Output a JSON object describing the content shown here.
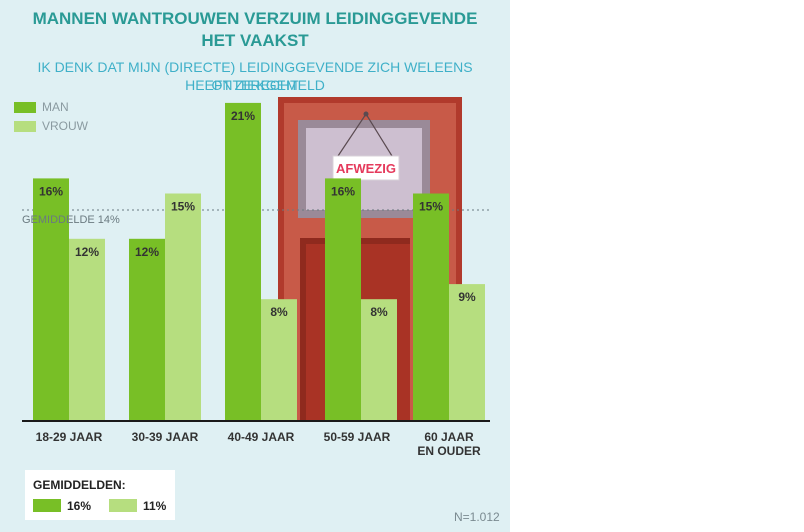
{
  "header": {
    "title_line1": "MANNEN WANTROUWEN VERZUIM LEIDINGGEVENDE",
    "title_line2": "HET VAAKST",
    "subtitle_line1": "IK DENK DAT MIJN (DIRECTE) LEIDINGGEVENDE ZICH WELEENS ONTERECHT",
    "subtitle_line2": "HEEFT ZIEKGEMELD"
  },
  "legend": [
    {
      "label": "MAN",
      "color": "#78bf26"
    },
    {
      "label": "VROUW",
      "color": "#b6de7f"
    }
  ],
  "illustration": {
    "sign_text": "AFWEZIG",
    "icon": "door-with-hanging-sign-icon"
  },
  "average_line_label": "GEMIDDELDE 14%",
  "averages": {
    "title": "GEMIDDELDEN:",
    "man": "16%",
    "vrouw": "11%"
  },
  "footnote": "N=1.012",
  "colors": {
    "man": "#78bf26",
    "vrouw": "#b6de7f",
    "panel": "#dff0f3",
    "door": "#b13a2c"
  },
  "chart_data": {
    "type": "bar",
    "title": "MANNEN WANTROUWEN VERZUIM LEIDINGGEVENDE HET VAAKST",
    "subtitle": "IK DENK DAT MIJN (DIRECTE) LEIDINGGEVENDE ZICH WELEENS ONTERECHT HEEFT ZIEKGEMELD",
    "categories": [
      "18-29 JAAR",
      "30-39 JAAR",
      "40-49 JAAR",
      "50-59 JAAR",
      "60 JAAR EN OUDER"
    ],
    "category_lines": [
      [
        "18-29 JAAR"
      ],
      [
        "30-39 JAAR"
      ],
      [
        "40-49 JAAR"
      ],
      [
        "50-59 JAAR"
      ],
      [
        "60 JAAR",
        "EN OUDER"
      ]
    ],
    "series": [
      {
        "name": "MAN",
        "values": [
          16,
          12,
          21,
          16,
          15
        ],
        "labels": [
          "16%",
          "12%",
          "21%",
          "16%",
          "15%"
        ]
      },
      {
        "name": "VROUW",
        "values": [
          12,
          15,
          8,
          8,
          9
        ],
        "labels": [
          "12%",
          "15%",
          "8%",
          "8%",
          "9%"
        ]
      }
    ],
    "reference_line": {
      "label": "GEMIDDELDE 14%",
      "value": 14
    },
    "ylim": [
      0,
      22
    ],
    "xlabel": "",
    "ylabel": "",
    "grid": false,
    "legend_position": "top-left"
  }
}
